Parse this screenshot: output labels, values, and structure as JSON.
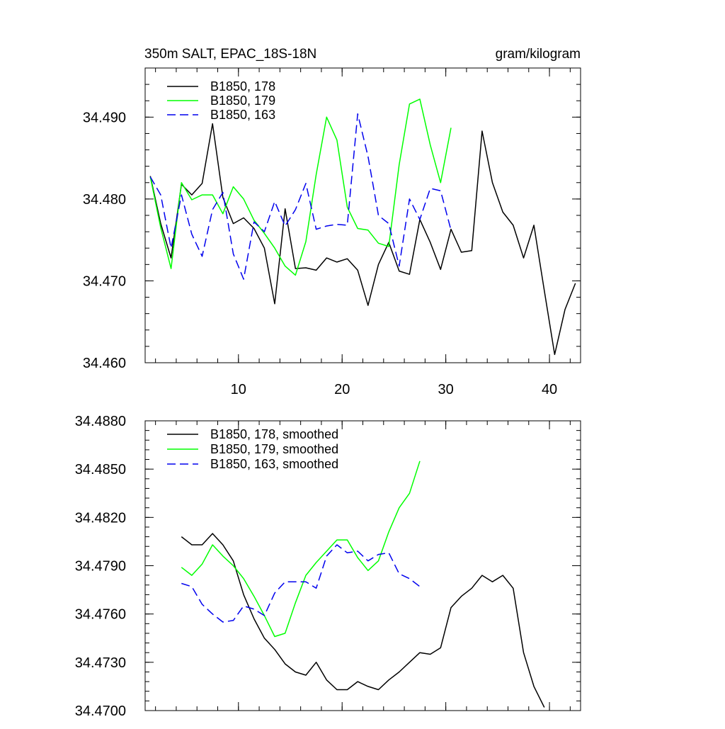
{
  "chart_data": [
    {
      "type": "line",
      "title_left": "350m SALT, EPAC_18S-18N",
      "title_right": "gram/kilogram",
      "xlim": [
        1,
        43
      ],
      "ylim": [
        34.46,
        34.496
      ],
      "x_ticks": [
        10,
        20,
        30,
        40
      ],
      "x_tick_labels": [
        "10",
        "20",
        "30",
        "40"
      ],
      "y_ticks": [
        34.46,
        34.47,
        34.48,
        34.49
      ],
      "y_tick_labels": [
        "34.460",
        "34.470",
        "34.480",
        "34.490"
      ],
      "legend_placement": "top-left",
      "series": [
        {
          "name": "B1850, 178",
          "color": "#000000",
          "dash": "solid",
          "x": [
            1.5,
            2.5,
            3.5,
            4.5,
            5.5,
            6.5,
            7.5,
            8.5,
            9.5,
            10.5,
            11.5,
            12.5,
            13.5,
            14.5,
            15.5,
            16.5,
            17.5,
            18.5,
            19.5,
            20.5,
            21.5,
            22.5,
            23.5,
            24.5,
            25.5,
            26.5,
            27.5,
            28.5,
            29.5,
            30.5,
            31.5,
            32.5,
            33.5,
            34.5,
            35.5,
            36.5,
            37.5,
            38.5,
            39.5,
            40.5,
            41.5,
            42.5
          ],
          "y": [
            34.4828,
            34.477,
            34.4728,
            34.4818,
            34.4805,
            34.4819,
            34.4892,
            34.4802,
            34.477,
            34.4777,
            34.4764,
            34.474,
            34.4672,
            34.4788,
            34.4715,
            34.4716,
            34.4713,
            34.4728,
            34.4723,
            34.4727,
            34.4713,
            34.467,
            34.472,
            34.4747,
            34.4712,
            34.4708,
            34.4775,
            34.4747,
            34.4714,
            34.4763,
            34.4735,
            34.4737,
            34.4883,
            34.482,
            34.4784,
            34.4768,
            34.4728,
            34.4768,
            34.4688,
            34.461,
            34.4665,
            34.4697
          ]
        },
        {
          "name": "B1850, 179",
          "color": "#00ff00",
          "dash": "solid",
          "x": [
            1.5,
            2.5,
            3.5,
            4.5,
            5.5,
            6.5,
            7.5,
            8.5,
            9.5,
            10.5,
            11.5,
            12.5,
            13.5,
            14.5,
            15.5,
            16.5,
            17.5,
            18.5,
            19.5,
            20.5,
            21.5,
            22.5,
            23.5,
            24.5,
            25.5,
            26.5,
            27.5,
            28.5,
            29.5,
            30.5
          ],
          "y": [
            34.4827,
            34.4765,
            34.4715,
            34.482,
            34.4799,
            34.4805,
            34.4805,
            34.4782,
            34.4815,
            34.48,
            34.4774,
            34.4758,
            34.474,
            34.4718,
            34.4707,
            34.4748,
            34.483,
            34.49,
            34.4872,
            34.479,
            34.4764,
            34.4762,
            34.4746,
            34.4742,
            34.4842,
            34.4916,
            34.4922,
            34.4866,
            34.482,
            34.4887
          ]
        },
        {
          "name": "B1850, 163",
          "color": "#0000ee",
          "dash": "dashed",
          "x": [
            1.5,
            2.5,
            3.5,
            4.5,
            5.5,
            6.5,
            7.5,
            8.5,
            9.5,
            10.5,
            11.5,
            12.5,
            13.5,
            14.5,
            15.5,
            16.5,
            17.5,
            18.5,
            19.5,
            20.5,
            21.5,
            22.5,
            23.5,
            24.5,
            25.5,
            26.5,
            27.5,
            28.5,
            29.5,
            30.5
          ],
          "y": [
            34.4827,
            34.4805,
            34.474,
            34.4805,
            34.4757,
            34.473,
            34.4787,
            34.4808,
            34.4733,
            34.4702,
            34.4772,
            34.476,
            34.4797,
            34.4767,
            34.4787,
            34.4819,
            34.4763,
            34.4767,
            34.4769,
            34.4768,
            34.4904,
            34.4852,
            34.478,
            34.477,
            34.4718,
            34.48,
            34.4775,
            34.4813,
            34.481,
            34.4762
          ]
        }
      ]
    },
    {
      "type": "line",
      "xlim": [
        1,
        43
      ],
      "ylim": [
        34.47,
        34.488
      ],
      "x_ticks": [
        10,
        20,
        30,
        40
      ],
      "y_ticks": [
        34.47,
        34.473,
        34.476,
        34.479,
        34.482,
        34.485,
        34.488
      ],
      "y_tick_labels": [
        "34.4700",
        "34.4730",
        "34.4760",
        "34.4790",
        "34.4820",
        "34.4850",
        "34.4880"
      ],
      "legend_placement": "top-left",
      "series": [
        {
          "name": "B1850, 178, smoothed",
          "color": "#000000",
          "dash": "solid",
          "x": [
            4.5,
            5.5,
            6.5,
            7.5,
            8.5,
            9.5,
            10.5,
            11.5,
            12.5,
            13.5,
            14.5,
            15.5,
            16.5,
            17.5,
            18.5,
            19.5,
            20.5,
            21.5,
            22.5,
            23.5,
            24.5,
            25.5,
            26.5,
            27.5,
            28.5,
            29.5,
            30.5,
            31.5,
            32.5,
            33.5,
            34.5,
            35.5,
            36.5,
            37.5,
            38.5,
            39.5
          ],
          "y": [
            34.4808,
            34.4803,
            34.4803,
            34.481,
            34.4803,
            34.4793,
            34.4772,
            34.4757,
            34.4745,
            34.4738,
            34.4729,
            34.4724,
            34.4722,
            34.473,
            34.4719,
            34.4713,
            34.4713,
            34.4718,
            34.4715,
            34.4713,
            34.4719,
            34.4724,
            34.473,
            34.4736,
            34.4735,
            34.4739,
            34.4764,
            34.4771,
            34.4776,
            34.4784,
            34.478,
            34.4784,
            34.4776,
            34.4736,
            34.4715,
            34.4702
          ]
        },
        {
          "name": "B1850, 179, smoothed",
          "color": "#00ff00",
          "dash": "solid",
          "x": [
            4.5,
            5.5,
            6.5,
            7.5,
            8.5,
            9.5,
            10.5,
            11.5,
            12.5,
            13.5,
            14.5,
            15.5,
            16.5,
            17.5,
            18.5,
            19.5,
            20.5,
            21.5,
            22.5,
            23.5,
            24.5,
            25.5,
            26.5,
            27.5
          ],
          "y": [
            34.4789,
            34.4784,
            34.4791,
            34.4803,
            34.4796,
            34.479,
            34.4782,
            34.4771,
            34.4759,
            34.4746,
            34.4748,
            34.4767,
            34.4784,
            34.4792,
            34.4799,
            34.4806,
            34.4806,
            34.4795,
            34.4787,
            34.4793,
            34.4811,
            34.4826,
            34.4835,
            34.4855
          ]
        },
        {
          "name": "B1850, 163, smoothed",
          "color": "#0000ee",
          "dash": "dashed",
          "x": [
            4.5,
            5.5,
            6.5,
            7.5,
            8.5,
            9.5,
            10.5,
            11.5,
            12.5,
            13.5,
            14.5,
            15.5,
            16.5,
            17.5,
            18.5,
            19.5,
            20.5,
            21.5,
            22.5,
            23.5,
            24.5,
            25.5,
            26.5,
            27.5
          ],
          "y": [
            34.4779,
            34.4777,
            34.4766,
            34.476,
            34.4755,
            34.4756,
            34.4765,
            34.4763,
            34.4759,
            34.4773,
            34.478,
            34.478,
            34.478,
            34.4776,
            34.4796,
            34.4803,
            34.4798,
            34.4799,
            34.4793,
            34.4797,
            34.4798,
            34.4785,
            34.4782,
            34.4777
          ]
        }
      ]
    }
  ]
}
